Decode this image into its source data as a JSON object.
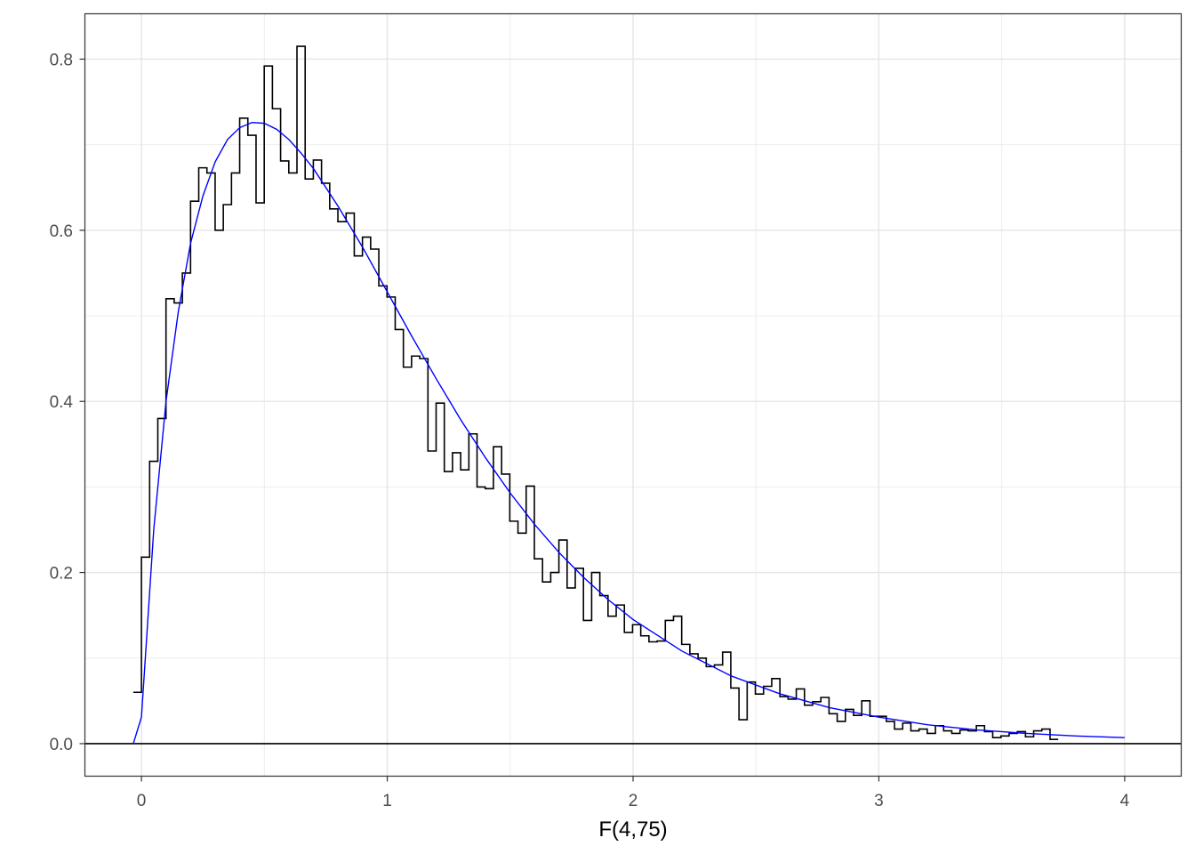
{
  "chart_data": {
    "type": "line",
    "title": "",
    "xlabel": "F(4,75)",
    "ylabel": "",
    "xlim": [
      -0.23,
      4.23
    ],
    "ylim": [
      -0.038,
      0.853
    ],
    "x_ticks": [
      0,
      1,
      2,
      3,
      4
    ],
    "x_tick_labels": [
      "0",
      "1",
      "2",
      "3",
      "4"
    ],
    "y_ticks": [
      0.0,
      0.2,
      0.4,
      0.6,
      0.8
    ],
    "y_tick_labels": [
      "0.0",
      "0.2",
      "0.4",
      "0.6",
      "0.8"
    ],
    "x_minor_ticks": [
      0.5,
      1.5,
      2.5,
      3.5
    ],
    "y_minor_ticks": [
      0.1,
      0.3,
      0.5,
      0.7
    ],
    "grid": true,
    "legend": "none",
    "hline": 0,
    "series": [
      {
        "kind": "step-histogram-density",
        "color": "#000000",
        "bin_width": 0.0333,
        "x_start": -0.0333,
        "values": [
          0.06,
          0.218,
          0.33,
          0.38,
          0.52,
          0.515,
          0.55,
          0.634,
          0.673,
          0.667,
          0.6,
          0.63,
          0.667,
          0.731,
          0.711,
          0.632,
          0.792,
          0.742,
          0.681,
          0.667,
          0.815,
          0.66,
          0.682,
          0.655,
          0.625,
          0.61,
          0.62,
          0.57,
          0.592,
          0.578,
          0.535,
          0.522,
          0.484,
          0.44,
          0.453,
          0.45,
          0.342,
          0.398,
          0.318,
          0.34,
          0.32,
          0.362,
          0.3,
          0.298,
          0.347,
          0.315,
          0.26,
          0.246,
          0.301,
          0.216,
          0.189,
          0.2,
          0.238,
          0.182,
          0.205,
          0.144,
          0.2,
          0.173,
          0.149,
          0.162,
          0.13,
          0.139,
          0.126,
          0.119,
          0.12,
          0.144,
          0.149,
          0.116,
          0.105,
          0.1,
          0.09,
          0.092,
          0.107,
          0.065,
          0.028,
          0.072,
          0.058,
          0.067,
          0.076,
          0.055,
          0.052,
          0.064,
          0.045,
          0.049,
          0.054,
          0.035,
          0.026,
          0.04,
          0.033,
          0.05,
          0.032,
          0.032,
          0.026,
          0.017,
          0.024,
          0.015,
          0.017,
          0.012,
          0.021,
          0.015,
          0.012,
          0.016,
          0.015,
          0.021,
          0.014,
          0.007,
          0.009,
          0.012,
          0.014,
          0.008,
          0.015,
          0.017,
          0.005
        ]
      },
      {
        "kind": "density-curve",
        "color": "#0000ff",
        "x": [
          -0.033,
          0.0,
          0.05,
          0.1,
          0.15,
          0.2,
          0.25,
          0.3,
          0.35,
          0.4,
          0.45,
          0.5,
          0.55,
          0.6,
          0.65,
          0.7,
          0.8,
          0.9,
          1.0,
          1.1,
          1.2,
          1.3,
          1.4,
          1.5,
          1.6,
          1.7,
          1.8,
          1.9,
          2.0,
          2.2,
          2.4,
          2.6,
          2.8,
          3.0,
          3.2,
          3.4,
          3.6,
          3.8,
          4.0
        ],
        "y": [
          0.0,
          0.031,
          0.25,
          0.4,
          0.505,
          0.585,
          0.64,
          0.68,
          0.706,
          0.72,
          0.726,
          0.725,
          0.718,
          0.706,
          0.69,
          0.672,
          0.628,
          0.58,
          0.528,
          0.476,
          0.426,
          0.378,
          0.334,
          0.293,
          0.256,
          0.223,
          0.194,
          0.168,
          0.145,
          0.108,
          0.079,
          0.058,
          0.042,
          0.031,
          0.022,
          0.016,
          0.012,
          0.009,
          0.007
        ]
      }
    ]
  }
}
